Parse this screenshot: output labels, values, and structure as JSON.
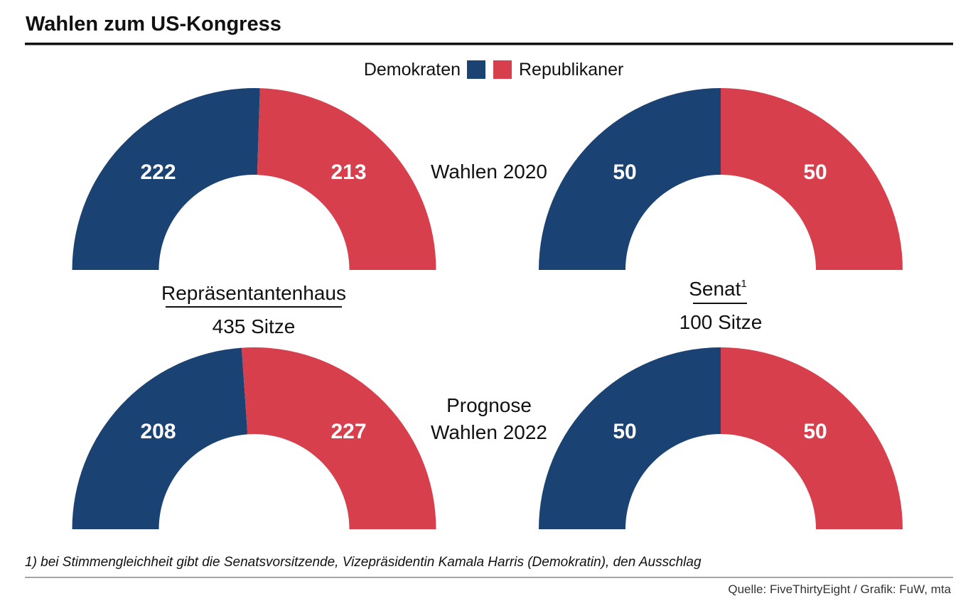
{
  "title": "Wahlen zum US-Kongress",
  "legend": {
    "dem": "Demokraten",
    "rep": "Republikaner"
  },
  "colors": {
    "dem": "#1a4273",
    "rep": "#d63f4b"
  },
  "rows": {
    "row1": "Wahlen 2020",
    "row2_line1": "Prognose",
    "row2_line2": "Wahlen 2022"
  },
  "house": {
    "name": "Repräsentantenhaus",
    "seats": "435 Sitze"
  },
  "senate": {
    "name": "Senat",
    "footnote_mark": "1",
    "seats": "100 Sitze"
  },
  "chart_data": [
    {
      "type": "pie",
      "chamber": "Repräsentantenhaus",
      "row": "Wahlen 2020",
      "series": [
        {
          "name": "Demokraten",
          "value": 222
        },
        {
          "name": "Republikaner",
          "value": 213
        }
      ]
    },
    {
      "type": "pie",
      "chamber": "Senat",
      "row": "Wahlen 2020",
      "series": [
        {
          "name": "Demokraten",
          "value": 50
        },
        {
          "name": "Republikaner",
          "value": 50
        }
      ]
    },
    {
      "type": "pie",
      "chamber": "Repräsentantenhaus",
      "row": "Prognose Wahlen 2022",
      "series": [
        {
          "name": "Demokraten",
          "value": 208
        },
        {
          "name": "Republikaner",
          "value": 227
        }
      ]
    },
    {
      "type": "pie",
      "chamber": "Senat",
      "row": "Prognose Wahlen 2022",
      "series": [
        {
          "name": "Demokraten",
          "value": 50
        },
        {
          "name": "Republikaner",
          "value": 50
        }
      ]
    }
  ],
  "footnote": "1) bei Stimmengleichheit gibt die Senatsvorsitzende, Vizepräsidentin Kamala Harris (Demokratin), den Ausschlag",
  "source": "Quelle: FiveThirtyEight / Grafik: FuW, mta"
}
